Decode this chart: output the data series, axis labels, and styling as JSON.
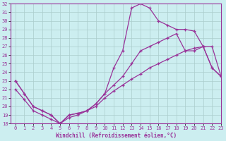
{
  "title": "",
  "xlabel": "Windchill (Refroidissement éolien,°C)",
  "ylabel": "",
  "bg_color": "#cceef0",
  "line_color": "#993399",
  "grid_color": "#aacccc",
  "xlim": [
    -0.5,
    23
  ],
  "ylim": [
    18,
    32
  ],
  "xticks": [
    0,
    1,
    2,
    3,
    4,
    5,
    6,
    7,
    8,
    9,
    10,
    11,
    12,
    13,
    14,
    15,
    16,
    17,
    18,
    19,
    20,
    21,
    22,
    23
  ],
  "yticks": [
    18,
    19,
    20,
    21,
    22,
    23,
    24,
    25,
    26,
    27,
    28,
    29,
    30,
    31,
    32
  ],
  "line1_x": [
    0,
    1,
    2,
    3,
    4,
    5,
    6,
    7,
    8,
    9,
    10,
    11,
    12,
    13,
    14,
    15,
    16,
    17,
    18,
    19,
    20,
    21,
    22,
    23
  ],
  "line1_y": [
    23.0,
    21.5,
    20.0,
    19.5,
    19.0,
    18.0,
    19.0,
    19.2,
    19.5,
    20.3,
    21.5,
    24.5,
    26.5,
    31.5,
    32.0,
    31.5,
    30.0,
    29.5,
    29.0,
    29.0,
    28.8,
    27.0,
    24.5,
    23.5
  ],
  "line2_x": [
    0,
    1,
    2,
    3,
    4,
    5,
    6,
    7,
    8,
    9,
    10,
    11,
    12,
    13,
    14,
    15,
    16,
    17,
    18,
    19,
    20,
    21,
    22,
    23
  ],
  "line2_y": [
    23.0,
    21.5,
    20.0,
    19.5,
    19.0,
    18.0,
    19.0,
    19.2,
    19.5,
    20.3,
    21.5,
    22.5,
    23.5,
    25.0,
    26.5,
    27.0,
    27.5,
    28.0,
    28.5,
    26.5,
    26.5,
    27.0,
    24.5,
    23.5
  ],
  "line3_x": [
    0,
    1,
    2,
    3,
    4,
    5,
    6,
    7,
    8,
    9,
    10,
    11,
    12,
    13,
    14,
    15,
    16,
    17,
    18,
    19,
    20,
    21,
    22,
    23
  ],
  "line3_y": [
    22.0,
    20.8,
    19.5,
    19.0,
    18.5,
    18.0,
    18.7,
    19.0,
    19.5,
    20.0,
    21.0,
    21.8,
    22.5,
    23.2,
    23.8,
    24.5,
    25.0,
    25.5,
    26.0,
    26.5,
    26.8,
    27.0,
    27.0,
    23.5
  ]
}
